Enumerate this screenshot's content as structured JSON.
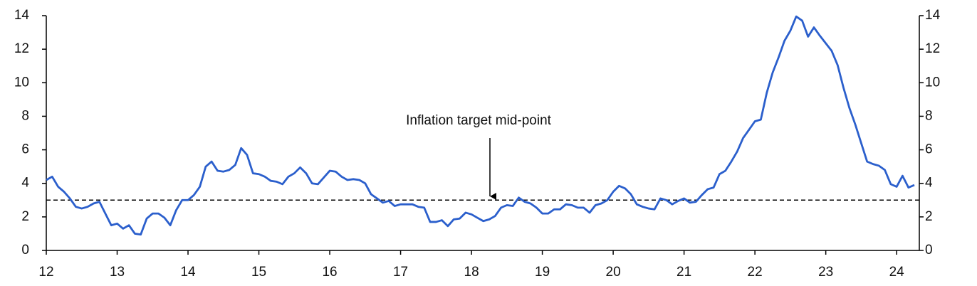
{
  "chart_data": {
    "type": "line",
    "x": [
      12,
      12.083,
      12.167,
      12.25,
      12.333,
      12.417,
      12.5,
      12.583,
      12.667,
      12.75,
      12.833,
      12.917,
      13,
      13.083,
      13.167,
      13.25,
      13.333,
      13.417,
      13.5,
      13.583,
      13.667,
      13.75,
      13.833,
      13.917,
      14,
      14.083,
      14.167,
      14.25,
      14.333,
      14.417,
      14.5,
      14.583,
      14.667,
      14.75,
      14.833,
      14.917,
      15,
      15.083,
      15.167,
      15.25,
      15.333,
      15.417,
      15.5,
      15.583,
      15.667,
      15.75,
      15.833,
      15.917,
      16,
      16.083,
      16.167,
      16.25,
      16.333,
      16.417,
      16.5,
      16.583,
      16.667,
      16.75,
      16.833,
      16.917,
      17,
      17.083,
      17.167,
      17.25,
      17.333,
      17.417,
      17.5,
      17.583,
      17.667,
      17.75,
      17.833,
      17.917,
      18,
      18.083,
      18.167,
      18.25,
      18.333,
      18.417,
      18.5,
      18.583,
      18.667,
      18.75,
      18.833,
      18.917,
      19,
      19.083,
      19.167,
      19.25,
      19.333,
      19.417,
      19.5,
      19.583,
      19.667,
      19.75,
      19.833,
      19.917,
      20,
      20.083,
      20.167,
      20.25,
      20.333,
      20.417,
      20.5,
      20.583,
      20.667,
      20.75,
      20.833,
      20.917,
      21,
      21.083,
      21.167,
      21.25,
      21.333,
      21.417,
      21.5,
      21.583,
      21.667,
      21.75,
      21.833,
      21.917,
      22,
      22.083,
      22.167,
      22.25,
      22.333,
      22.417,
      22.5,
      22.583,
      22.667,
      22.75,
      22.833,
      22.917,
      23,
      23.083,
      23.167,
      23.25,
      23.333,
      23.417,
      23.5,
      23.583,
      23.667,
      23.75,
      23.833,
      23.917,
      24,
      24.083,
      24.167,
      24.25
    ],
    "series": [
      {
        "color": "#2b5fcc",
        "values": [
          4.2,
          4.4,
          3.8,
          3.5,
          3.1,
          2.6,
          2.5,
          2.6,
          2.8,
          2.9,
          2.2,
          1.5,
          1.6,
          1.3,
          1.5,
          1.0,
          0.95,
          1.9,
          2.2,
          2.2,
          1.95,
          1.5,
          2.4,
          3.0,
          3.0,
          3.3,
          3.8,
          5.0,
          5.3,
          4.75,
          4.7,
          4.8,
          5.1,
          6.1,
          5.7,
          4.6,
          4.55,
          4.4,
          4.15,
          4.1,
          3.95,
          4.4,
          4.6,
          4.95,
          4.6,
          4.0,
          3.95,
          4.35,
          4.75,
          4.7,
          4.4,
          4.2,
          4.25,
          4.2,
          4.0,
          3.35,
          3.1,
          2.85,
          2.95,
          2.65,
          2.75,
          2.75,
          2.75,
          2.6,
          2.55,
          1.7,
          1.7,
          1.8,
          1.45,
          1.85,
          1.9,
          2.25,
          2.15,
          1.95,
          1.75,
          1.85,
          2.05,
          2.55,
          2.7,
          2.65,
          3.15,
          2.9,
          2.8,
          2.55,
          2.2,
          2.2,
          2.45,
          2.45,
          2.75,
          2.7,
          2.55,
          2.55,
          2.25,
          2.7,
          2.8,
          3.0,
          3.5,
          3.85,
          3.7,
          3.35,
          2.75,
          2.6,
          2.5,
          2.45,
          3.1,
          3.0,
          2.75,
          2.95,
          3.1,
          2.85,
          2.9,
          3.3,
          3.65,
          3.75,
          4.55,
          4.75,
          5.3,
          5.9,
          6.7,
          7.2,
          7.7,
          7.8,
          9.4,
          10.6,
          11.5,
          12.5,
          13.1,
          13.95,
          13.7,
          12.75,
          13.3,
          12.8,
          12.35,
          11.9,
          11.05,
          9.7,
          8.5,
          7.5,
          6.4,
          5.3,
          5.15,
          5.05,
          4.8,
          3.95,
          3.8,
          4.45,
          3.75,
          3.9
        ]
      }
    ],
    "xlim": [
      12,
      24.32
    ],
    "xticks": [
      12,
      13,
      14,
      15,
      16,
      17,
      18,
      19,
      20,
      21,
      22,
      23,
      24
    ],
    "ylim": [
      0,
      14
    ],
    "yticks": [
      0,
      2,
      4,
      6,
      8,
      10,
      12,
      14
    ],
    "y2lim": [
      0,
      14
    ],
    "y2ticks": [
      0,
      2,
      4,
      6,
      8,
      10,
      12,
      14
    ],
    "reference_line": {
      "value": 3,
      "label": "Inflation target mid-point"
    }
  }
}
